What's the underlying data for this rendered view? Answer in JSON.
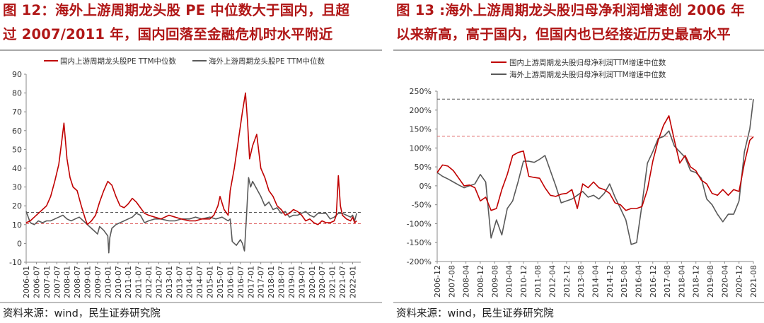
{
  "charts": [
    {
      "title_line1": "图 12：海外上游周期龙头股 PE 中位数大于国内，且超",
      "title_line2": "过 2007/2011 年，国内回落至金融危机时水平附近",
      "source": "资料来源：wind，民生证券研究院"
    },
    {
      "title_line1": "图 13 :海外上游周期龙头股归母净利润增速创 2006 年",
      "title_line2": "以来新高，高于国内，但国内也已经接近历史最高水平",
      "source": "资料来源：wind，民生证券研究院"
    }
  ],
  "chart_data": [
    {
      "type": "line",
      "title": "",
      "xlabel": "",
      "ylabel": "",
      "ylim": [
        -10,
        90
      ],
      "yticks": [
        -10,
        0,
        10,
        20,
        30,
        40,
        50,
        60,
        70,
        80,
        90
      ],
      "xlim": [
        2006.0,
        2022.4
      ],
      "xticks": [
        "2006-01",
        "2006-07",
        "2007-01",
        "2007-07",
        "2008-01",
        "2008-07",
        "2009-01",
        "2009-07",
        "2010-01",
        "2010-07",
        "2011-01",
        "2011-07",
        "2012-01",
        "2012-07",
        "2013-01",
        "2013-07",
        "2014-01",
        "2014-07",
        "2015-01",
        "2015-07",
        "2016-01",
        "2016-07",
        "2017-01",
        "2017-07",
        "2018-01",
        "2018-07",
        "2019-01",
        "2019-07",
        "2020-01",
        "2020-07",
        "2021-01",
        "2021-07",
        "2022-01"
      ],
      "legend": "top",
      "grid": false,
      "colors": {
        "domestic": "#c00000",
        "overseas": "#595959"
      },
      "reference_lines": [
        {
          "value": 16.5,
          "color": "#595959",
          "style": "dashed"
        },
        {
          "value": 10.5,
          "color": "#e06666",
          "style": "dashed"
        }
      ],
      "series": [
        {
          "name": "国内上游周期龙头股PE TTM中位数",
          "x": [
            2006.0,
            2006.2,
            2006.4,
            2006.6,
            2006.8,
            2007.0,
            2007.2,
            2007.4,
            2007.6,
            2007.75,
            2007.85,
            2008.0,
            2008.15,
            2008.3,
            2008.5,
            2008.7,
            2008.9,
            2009.0,
            2009.2,
            2009.4,
            2009.6,
            2009.8,
            2010.0,
            2010.2,
            2010.4,
            2010.6,
            2010.8,
            2011.0,
            2011.2,
            2011.4,
            2011.6,
            2011.8,
            2012.0,
            2012.3,
            2012.6,
            2013.0,
            2013.3,
            2013.6,
            2014.0,
            2014.3,
            2014.6,
            2015.0,
            2015.2,
            2015.4,
            2015.5,
            2015.7,
            2015.9,
            2016.0,
            2016.2,
            2016.4,
            2016.6,
            2016.75,
            2016.85,
            2016.95,
            2017.1,
            2017.3,
            2017.5,
            2017.7,
            2017.9,
            2018.1,
            2018.3,
            2018.5,
            2018.7,
            2018.9,
            2019.1,
            2019.3,
            2019.5,
            2019.7,
            2019.9,
            2020.1,
            2020.3,
            2020.5,
            2020.7,
            2020.9,
            2021.1,
            2021.2,
            2021.3,
            2021.4,
            2021.5,
            2021.7,
            2021.9,
            2022.0,
            2022.1,
            2022.2
          ],
          "values": [
            11,
            12,
            14,
            16,
            18,
            20,
            25,
            33,
            42,
            55,
            64,
            45,
            35,
            30,
            28,
            20,
            13,
            10,
            12,
            15,
            22,
            28,
            33,
            31,
            25,
            20,
            19,
            21,
            24,
            22,
            19,
            16,
            15,
            14,
            13,
            15,
            14,
            13,
            12,
            12,
            13,
            13,
            15,
            20,
            25,
            18,
            15,
            28,
            40,
            55,
            70,
            80,
            65,
            45,
            52,
            58,
            40,
            35,
            28,
            25,
            20,
            18,
            15,
            16,
            18,
            17,
            15,
            12,
            13,
            11,
            10,
            12,
            11,
            11,
            12,
            15,
            36,
            20,
            15,
            13,
            12,
            14,
            11,
            12
          ]
        },
        {
          "name": "海外上游周期龙头股PE TTM中位数",
          "x": [
            2006.0,
            2006.2,
            2006.4,
            2006.6,
            2006.8,
            2007.0,
            2007.2,
            2007.4,
            2007.6,
            2007.8,
            2008.0,
            2008.2,
            2008.4,
            2008.6,
            2008.8,
            2009.0,
            2009.2,
            2009.4,
            2009.5,
            2009.6,
            2009.8,
            2010.0,
            2010.05,
            2010.1,
            2010.2,
            2010.4,
            2010.6,
            2010.8,
            2011.0,
            2011.2,
            2011.4,
            2011.6,
            2011.8,
            2012.0,
            2012.3,
            2012.6,
            2013.0,
            2013.3,
            2013.6,
            2014.0,
            2014.3,
            2014.6,
            2015.0,
            2015.3,
            2015.6,
            2015.9,
            2016.0,
            2016.1,
            2016.3,
            2016.5,
            2016.6,
            2016.7,
            2016.8,
            2016.9,
            2017.0,
            2017.1,
            2017.3,
            2017.5,
            2017.7,
            2017.9,
            2018.1,
            2018.3,
            2018.5,
            2018.7,
            2018.9,
            2019.1,
            2019.3,
            2019.5,
            2019.7,
            2019.9,
            2020.1,
            2020.3,
            2020.5,
            2020.7,
            2020.9,
            2021.1,
            2021.3,
            2021.5,
            2021.7,
            2021.9,
            2022.0,
            2022.1,
            2022.2
          ],
          "values": [
            17,
            11,
            10,
            12,
            11,
            12,
            12,
            13,
            14,
            15,
            13,
            12,
            13,
            14,
            12,
            10,
            8,
            6,
            5,
            9,
            7,
            4,
            -5,
            3,
            8,
            10,
            11,
            12,
            13,
            14,
            16,
            15,
            11,
            12,
            13,
            13,
            12,
            12,
            13,
            13,
            14,
            13,
            14,
            13,
            14,
            12,
            13,
            1,
            -1,
            2,
            0,
            -4,
            15,
            35,
            30,
            33,
            29,
            25,
            20,
            22,
            18,
            19,
            16,
            17,
            14,
            15,
            15,
            16,
            17,
            15,
            14,
            16,
            16,
            16,
            13,
            14,
            16,
            16,
            15,
            14,
            15,
            12,
            16
          ]
        }
      ]
    },
    {
      "type": "line",
      "title": "",
      "xlabel": "",
      "ylabel": "",
      "ylim": [
        -200,
        250
      ],
      "yticks": [
        "-200%",
        "-150%",
        "-100%",
        "-50%",
        "0%",
        "50%",
        "100%",
        "150%",
        "200%",
        "250%"
      ],
      "xlim": [
        2006.917,
        2021.583
      ],
      "xticks": [
        "2006-12",
        "2007-08",
        "2008-04",
        "2008-12",
        "2009-08",
        "2010-04",
        "2010-12",
        "2011-08",
        "2012-04",
        "2012-12",
        "2013-08",
        "2014-04",
        "2014-12",
        "2015-08",
        "2016-04",
        "2016-12",
        "2017-08",
        "2018-04",
        "2018-12",
        "2019-08",
        "2020-04",
        "2020-12",
        "2021-08"
      ],
      "legend": "top",
      "grid": false,
      "colors": {
        "domestic": "#c00000",
        "overseas": "#595959"
      },
      "reference_lines": [
        {
          "value": 229,
          "color": "#595959",
          "style": "dashed"
        },
        {
          "value": 131,
          "color": "#e06666",
          "style": "dashed"
        }
      ],
      "series": [
        {
          "name": "国内上游周期龙头股归母净利润TTM增速中位数",
          "x": [
            2006.917,
            2007.167,
            2007.417,
            2007.667,
            2007.917,
            2008.167,
            2008.417,
            2008.667,
            2008.917,
            2009.167,
            2009.417,
            2009.667,
            2009.917,
            2010.167,
            2010.417,
            2010.667,
            2010.917,
            2011.167,
            2011.417,
            2011.667,
            2011.917,
            2012.167,
            2012.417,
            2012.667,
            2012.917,
            2013.167,
            2013.417,
            2013.667,
            2013.917,
            2014.167,
            2014.417,
            2014.667,
            2014.917,
            2015.167,
            2015.417,
            2015.667,
            2015.917,
            2016.167,
            2016.417,
            2016.667,
            2016.917,
            2017.167,
            2017.417,
            2017.667,
            2017.917,
            2018.167,
            2018.417,
            2018.667,
            2018.917,
            2019.167,
            2019.417,
            2019.667,
            2019.917,
            2020.167,
            2020.417,
            2020.667,
            2020.917,
            2021.167,
            2021.417,
            2021.583
          ],
          "values": [
            35,
            55,
            52,
            40,
            20,
            0,
            2,
            -5,
            -40,
            -30,
            -65,
            -60,
            -10,
            30,
            80,
            88,
            92,
            25,
            22,
            20,
            -5,
            -25,
            -28,
            -22,
            -20,
            -10,
            -60,
            5,
            -5,
            10,
            -5,
            -10,
            -20,
            -45,
            -50,
            -65,
            -60,
            -60,
            -55,
            -10,
            65,
            120,
            160,
            185,
            120,
            60,
            80,
            50,
            40,
            15,
            5,
            -20,
            -25,
            -10,
            -25,
            -10,
            -15,
            60,
            120,
            130
          ]
        },
        {
          "name": "海外上游周期龙头股归母净利润TTM增速中位数",
          "x": [
            2006.917,
            2007.167,
            2007.417,
            2007.667,
            2007.917,
            2008.167,
            2008.417,
            2008.667,
            2008.917,
            2009.167,
            2009.417,
            2009.667,
            2009.917,
            2010.167,
            2010.417,
            2010.667,
            2010.917,
            2011.167,
            2011.417,
            2011.667,
            2011.917,
            2012.167,
            2012.417,
            2012.667,
            2012.917,
            2013.167,
            2013.417,
            2013.667,
            2013.917,
            2014.167,
            2014.417,
            2014.667,
            2014.917,
            2015.167,
            2015.417,
            2015.667,
            2015.917,
            2016.167,
            2016.417,
            2016.667,
            2016.917,
            2017.167,
            2017.417,
            2017.667,
            2017.917,
            2018.167,
            2018.417,
            2018.667,
            2018.917,
            2019.167,
            2019.417,
            2019.667,
            2019.917,
            2020.167,
            2020.417,
            2020.667,
            2020.917,
            2021.167,
            2021.417,
            2021.583
          ],
          "values": [
            35,
            25,
            18,
            10,
            2,
            -5,
            0,
            5,
            30,
            10,
            -138,
            -90,
            -130,
            -60,
            -40,
            10,
            65,
            65,
            62,
            70,
            80,
            40,
            0,
            -45,
            -40,
            -35,
            -25,
            -15,
            -30,
            -25,
            -35,
            -20,
            5,
            -30,
            -60,
            -90,
            -155,
            -150,
            -50,
            60,
            90,
            125,
            130,
            145,
            105,
            90,
            75,
            40,
            35,
            20,
            -35,
            -50,
            -75,
            -95,
            -75,
            -75,
            -40,
            90,
            150,
            229
          ]
        }
      ]
    }
  ]
}
